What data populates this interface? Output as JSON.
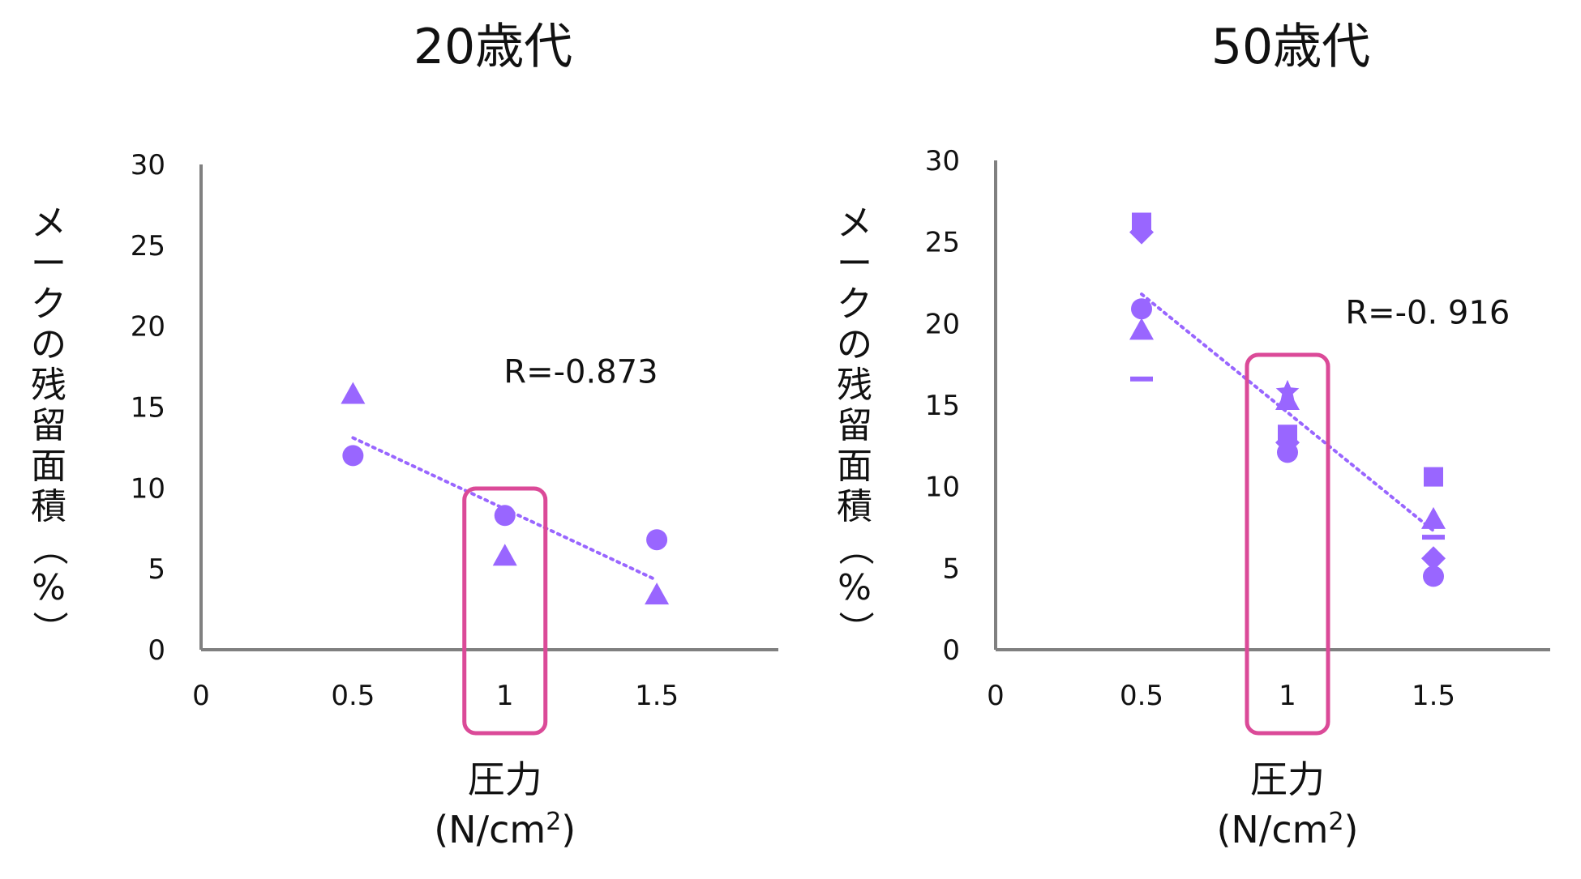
{
  "colors": {
    "marker": "#9966FF",
    "axis": "#808080",
    "highlight": "#DB4A98",
    "trend": "#9966FF"
  },
  "chart_data": [
    {
      "type": "scatter",
      "title": "20歳代",
      "xlabel_line1": "圧力",
      "xlabel_unit_pre": "(N/cm",
      "xlabel_unit_sup": "2",
      "xlabel_unit_post": ")",
      "ylabel": "メークの残留面積（%）",
      "xlim": [
        0,
        1.9
      ],
      "ylim": [
        0,
        30
      ],
      "xticks": [
        "0",
        "0.5",
        "1",
        "1.5"
      ],
      "xtick_values": [
        0,
        0.5,
        1,
        1.5
      ],
      "yticks": [
        "0",
        "5",
        "10",
        "15",
        "20",
        "25",
        "30"
      ],
      "ytick_values": [
        0,
        5,
        10,
        15,
        20,
        25,
        30
      ],
      "annotation": "R=-0.873",
      "annotation_pos": [
        1.25,
        16.5
      ],
      "trendline": {
        "x": [
          0.5,
          1.5
        ],
        "y": [
          13.1,
          4.3
        ],
        "style": "dotted"
      },
      "highlight_x": 1,
      "points": [
        {
          "x": 0.5,
          "y": 15.8,
          "marker": "triangle"
        },
        {
          "x": 0.5,
          "y": 12.0,
          "marker": "circle"
        },
        {
          "x": 1.0,
          "y": 8.3,
          "marker": "circle"
        },
        {
          "x": 1.0,
          "y": 5.8,
          "marker": "triangle"
        },
        {
          "x": 1.5,
          "y": 6.8,
          "marker": "circle"
        },
        {
          "x": 1.5,
          "y": 3.4,
          "marker": "triangle"
        }
      ]
    },
    {
      "type": "scatter",
      "title": "50歳代",
      "xlabel_line1": "圧力",
      "xlabel_unit_pre": "(N/cm",
      "xlabel_unit_sup": "2",
      "xlabel_unit_post": ")",
      "ylabel": "メークの残留面積（%）",
      "xlim": [
        0,
        1.9
      ],
      "ylim": [
        0,
        30
      ],
      "xticks": [
        "0",
        "0.5",
        "1",
        "1.5"
      ],
      "xtick_values": [
        0,
        0.5,
        1,
        1.5
      ],
      "yticks": [
        "0",
        "5",
        "10",
        "15",
        "20",
        "25",
        "30"
      ],
      "ytick_values": [
        0,
        5,
        10,
        15,
        20,
        25,
        30
      ],
      "annotation": "R=-0. 916",
      "annotation_pos": [
        1.48,
        20.0
      ],
      "trendline": {
        "x": [
          0.5,
          1.5
        ],
        "y": [
          21.8,
          7.3
        ],
        "style": "dotted"
      },
      "highlight_x": 1,
      "points": [
        {
          "x": 0.5,
          "y": 26.2,
          "marker": "square"
        },
        {
          "x": 0.5,
          "y": 25.6,
          "marker": "diamond"
        },
        {
          "x": 0.5,
          "y": 20.9,
          "marker": "circle"
        },
        {
          "x": 0.5,
          "y": 19.6,
          "marker": "triangle"
        },
        {
          "x": 0.5,
          "y": 16.6,
          "marker": "dash"
        },
        {
          "x": 1.0,
          "y": 15.8,
          "marker": "star"
        },
        {
          "x": 1.0,
          "y": 15.3,
          "marker": "triangle"
        },
        {
          "x": 1.0,
          "y": 13.2,
          "marker": "square"
        },
        {
          "x": 1.0,
          "y": 12.7,
          "marker": "diamond"
        },
        {
          "x": 1.0,
          "y": 12.1,
          "marker": "circle"
        },
        {
          "x": 1.5,
          "y": 10.6,
          "marker": "square"
        },
        {
          "x": 1.5,
          "y": 8.0,
          "marker": "triangle"
        },
        {
          "x": 1.5,
          "y": 6.9,
          "marker": "dash"
        },
        {
          "x": 1.5,
          "y": 5.6,
          "marker": "diamond"
        },
        {
          "x": 1.5,
          "y": 4.5,
          "marker": "circle"
        }
      ]
    }
  ]
}
